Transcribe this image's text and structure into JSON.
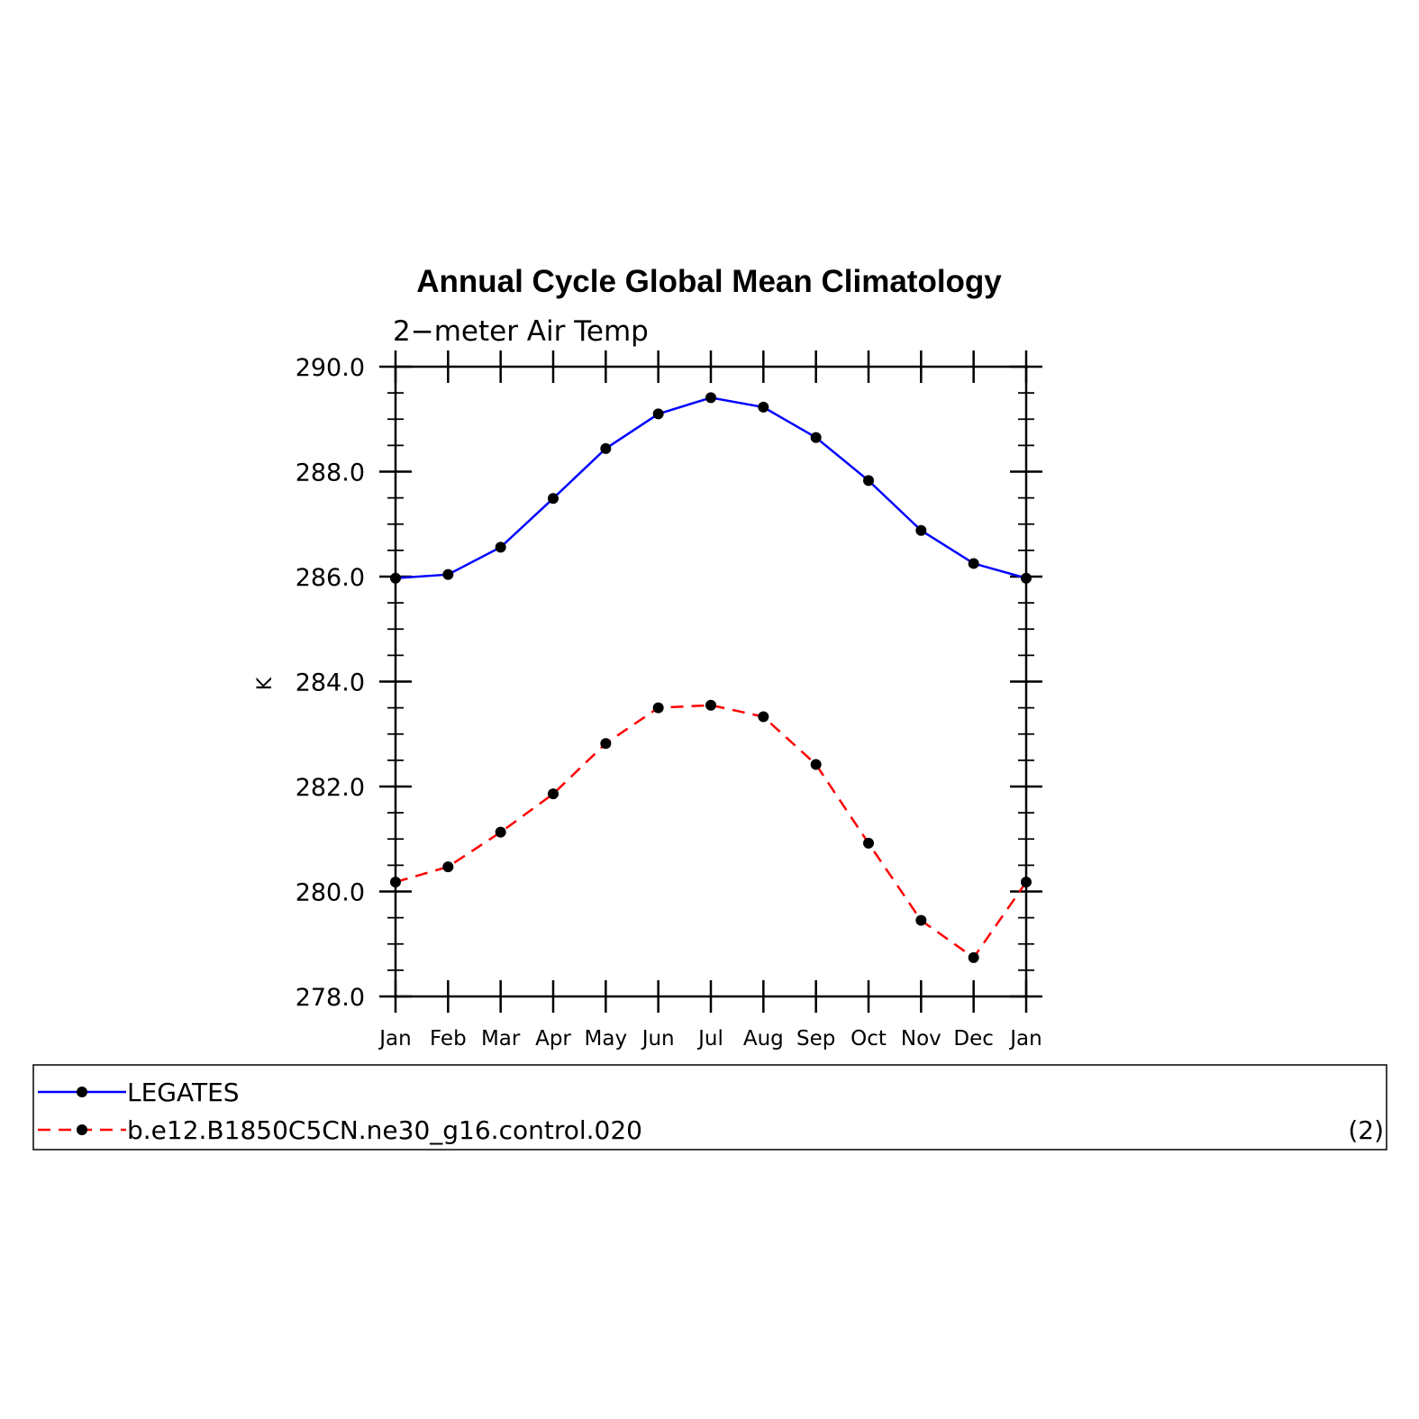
{
  "chart_data": {
    "type": "line",
    "title": "Annual Cycle Global Mean Climatology",
    "subtitle": "2−meter Air Temp",
    "ylabel": "K",
    "ylim": [
      278.0,
      290.0
    ],
    "yticks": [
      "278.0",
      "280.0",
      "282.0",
      "284.0",
      "286.0",
      "288.0",
      "290.0"
    ],
    "categories": [
      "Jan",
      "Feb",
      "Mar",
      "Apr",
      "May",
      "Jun",
      "Jul",
      "Aug",
      "Sep",
      "Oct",
      "Nov",
      "Dec",
      "Jan"
    ],
    "series": [
      {
        "name": "LEGATES",
        "color": "#0000ff",
        "dash": "solid",
        "marker": "filled-circle",
        "values": [
          285.97,
          286.04,
          286.56,
          287.49,
          288.44,
          289.1,
          289.41,
          289.23,
          288.65,
          287.83,
          286.88,
          286.25,
          285.97
        ]
      },
      {
        "name": "b.e12.B1850C5CN.ne30_g16.control.020",
        "color": "#ff0000",
        "dash": "dashed",
        "marker": "filled-circle",
        "values": [
          280.18,
          280.47,
          281.13,
          281.86,
          282.82,
          283.5,
          283.55,
          283.33,
          282.42,
          280.92,
          279.45,
          278.74,
          280.18
        ]
      }
    ],
    "legend": {
      "placement": "bottom",
      "tag": "(2)"
    },
    "grid": false
  }
}
